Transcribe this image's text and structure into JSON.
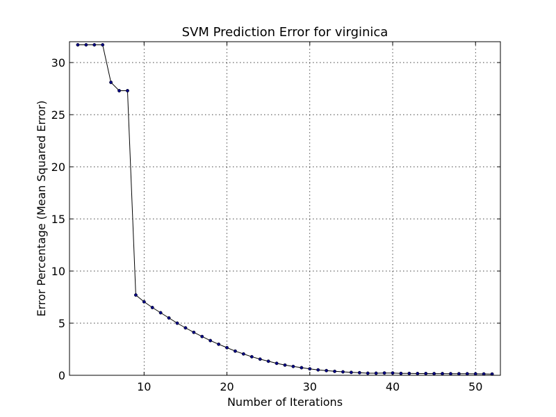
{
  "chart_data": {
    "type": "line",
    "title": "SVM Prediction Error for virginica",
    "xlabel": "Number of Iterations",
    "ylabel": "Error Percentage (Mean Squared Error)",
    "xlim": [
      1,
      53
    ],
    "ylim": [
      0,
      32
    ],
    "xticks": [
      10,
      20,
      30,
      40,
      50
    ],
    "yticks": [
      0,
      5,
      10,
      15,
      20,
      25,
      30
    ],
    "grid": true,
    "colors": {
      "line": "#000000",
      "marker": "#000080"
    },
    "series": [
      {
        "x": [
          2,
          3,
          4,
          5,
          6,
          7,
          8,
          9,
          10,
          11,
          12,
          13,
          14,
          15,
          16,
          17,
          18,
          19,
          20,
          21,
          22,
          23,
          24,
          25,
          26,
          27,
          28,
          29,
          30,
          31,
          32,
          33,
          34,
          35,
          36,
          37,
          38,
          39,
          40,
          41,
          42,
          43,
          44,
          45,
          46,
          47,
          48,
          49,
          50,
          51,
          52
        ],
        "y": [
          31.7,
          31.7,
          31.7,
          31.7,
          28.1,
          27.3,
          27.3,
          7.7,
          7.05,
          6.5,
          6.0,
          5.5,
          5.0,
          4.55,
          4.12,
          3.72,
          3.33,
          2.98,
          2.65,
          2.32,
          2.05,
          1.78,
          1.55,
          1.35,
          1.15,
          0.98,
          0.85,
          0.73,
          0.62,
          0.52,
          0.45,
          0.38,
          0.33,
          0.28,
          0.25,
          0.2,
          0.2,
          0.22,
          0.22,
          0.18,
          0.18,
          0.17,
          0.17,
          0.16,
          0.16,
          0.15,
          0.15,
          0.15,
          0.14,
          0.13,
          0.12
        ]
      }
    ]
  }
}
